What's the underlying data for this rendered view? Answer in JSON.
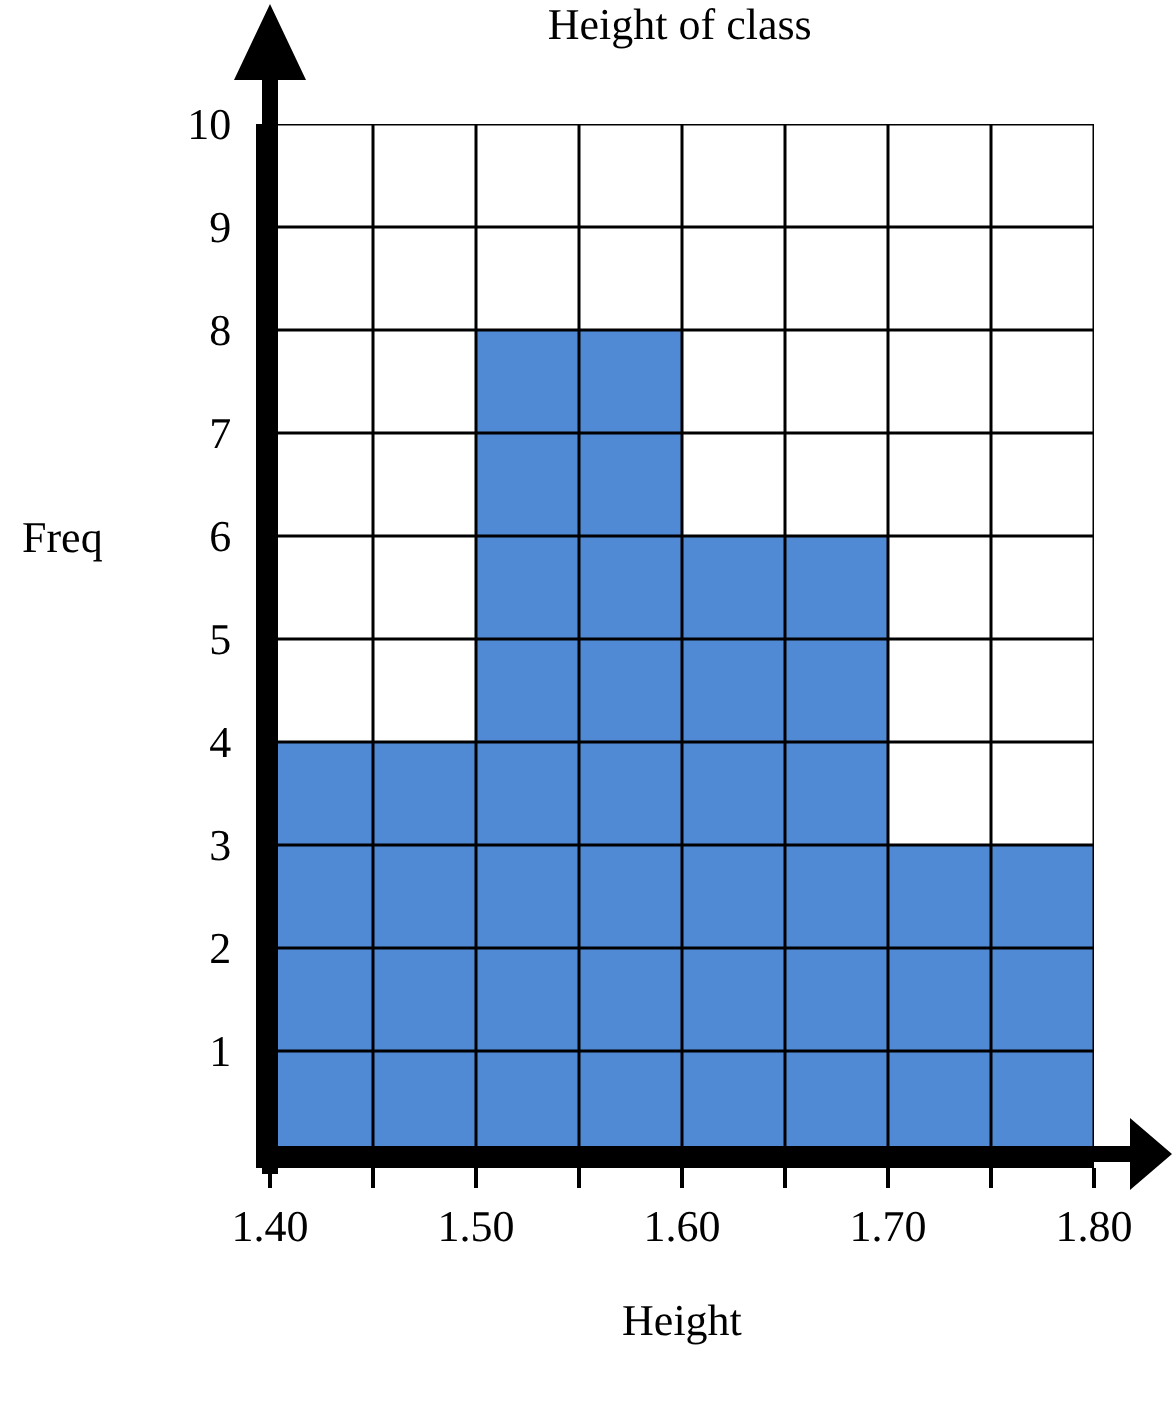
{
  "chart_data": {
    "type": "histogram",
    "title": "Height of class",
    "xlabel": "Height",
    "ylabel": "Freq",
    "bins": [
      1.4,
      1.45,
      1.5,
      1.55,
      1.6,
      1.65,
      1.7,
      1.75,
      1.8
    ],
    "values": [
      4,
      4,
      8,
      8,
      6,
      6,
      3,
      3
    ],
    "color": "#5089d4",
    "xlim": [
      1.4,
      1.8
    ],
    "ylim": [
      0,
      10
    ],
    "xticks": [
      {
        "value": 1.4,
        "label": "1.40"
      },
      {
        "value": 1.45,
        "label": null
      },
      {
        "value": 1.5,
        "label": "1.50"
      },
      {
        "value": 1.55,
        "label": null
      },
      {
        "value": 1.6,
        "label": "1.60"
      },
      {
        "value": 1.65,
        "label": null
      },
      {
        "value": 1.7,
        "label": "1.70"
      },
      {
        "value": 1.75,
        "label": null
      },
      {
        "value": 1.8,
        "label": "1.80"
      }
    ],
    "yticks": [
      1,
      2,
      3,
      4,
      5,
      6,
      7,
      8,
      9,
      10
    ],
    "grid": true
  }
}
